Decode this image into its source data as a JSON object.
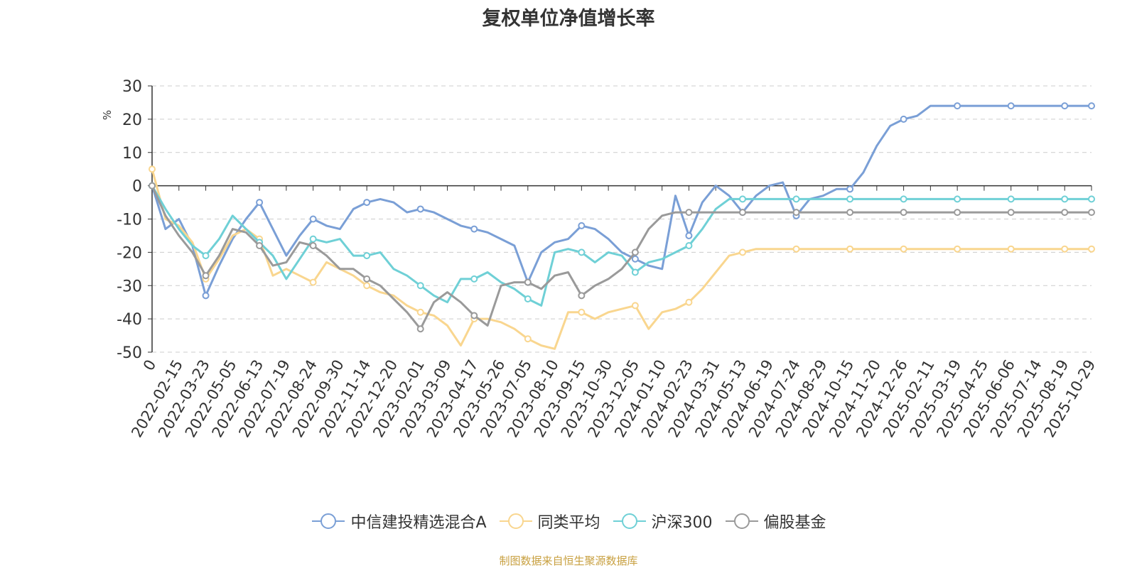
{
  "title": "复权单位净值增长率",
  "source_note": "制图数据来自恒生聚源数据库",
  "chart_data": {
    "type": "line",
    "title": "复权单位净值增长率",
    "ylabel": "%",
    "ylim": [
      -50,
      30
    ],
    "y_ticks": [
      30,
      20,
      10,
      0,
      -10,
      -20,
      -30,
      -40,
      -50
    ],
    "x_ticks": [
      "0",
      "2022-02-15",
      "2022-03-23",
      "2022-05-05",
      "2022-06-13",
      "2022-07-19",
      "2022-08-24",
      "2022-09-30",
      "2022-11-14",
      "2022-12-20",
      "2023-02-01",
      "2023-03-09",
      "2023-04-17",
      "2023-05-26",
      "2023-07-05",
      "2023-08-10",
      "2023-09-15",
      "2023-10-30",
      "2023-12-05",
      "2024-01-10",
      "2024-02-23",
      "2024-03-31",
      "2024-05-13",
      "2024-06-19",
      "2024-07-24",
      "2024-08-29",
      "2024-10-15",
      "2024-11-20",
      "2024-12-26",
      "2025-02-11",
      "2025-03-19",
      "2025-04-25",
      "2025-06-06",
      "2025-07-14",
      "2025-08-19",
      "2025-10-29"
    ],
    "grid": "horizontal dashed",
    "legend_position": "bottom",
    "x_positions": [
      0,
      1,
      2,
      3,
      4,
      5,
      6,
      7,
      8,
      9,
      10,
      11,
      12,
      13,
      14,
      15,
      16,
      17,
      18,
      19,
      20,
      21,
      22,
      23,
      24,
      25,
      26,
      27,
      28,
      29,
      30,
      31,
      32,
      33,
      34,
      35,
      36,
      37,
      38,
      39,
      40,
      41,
      42,
      43,
      44,
      45,
      46,
      47,
      48,
      49,
      50,
      51,
      52,
      53,
      54,
      55,
      56,
      57,
      58,
      59,
      60,
      61,
      62,
      63,
      64,
      65,
      66,
      67,
      68,
      69,
      70
    ],
    "series": [
      {
        "name": "中信建投精选混合A",
        "color": "#7a9fd6",
        "values": [
          0,
          -13,
          -10,
          -18,
          -33,
          -24,
          -16,
          -10,
          -5,
          -13,
          -21,
          -15,
          -10,
          -12,
          -13,
          -7,
          -5,
          -4,
          -5,
          -8,
          -7,
          -8,
          -10,
          -12,
          -13,
          -14,
          -16,
          -18,
          -29,
          -20,
          -17,
          -16,
          -12,
          -13,
          -16,
          -20,
          -22,
          -24,
          -25,
          -3,
          -15,
          -5,
          0,
          -3,
          -8,
          -3,
          0,
          1,
          -9,
          -4,
          -3,
          -1,
          -1,
          4,
          12,
          18,
          20,
          21,
          24,
          24,
          24,
          24,
          24,
          24,
          24,
          24,
          24,
          24,
          24,
          24,
          24
        ]
      },
      {
        "name": "同类平均",
        "color": "#f9d68f",
        "values": [
          5,
          -10,
          -12,
          -17,
          -28,
          -22,
          -15,
          -13,
          -16,
          -27,
          -25,
          -27,
          -29,
          -23,
          -25,
          -27,
          -30,
          -32,
          -33,
          -36,
          -38,
          -39,
          -42,
          -48,
          -40,
          -40,
          -41,
          -43,
          -46,
          -48,
          -49,
          -38,
          -38,
          -40,
          -38,
          -37,
          -36,
          -43,
          -38,
          -37,
          -35,
          -31,
          -26,
          -21,
          -20,
          -19,
          -19,
          -19,
          -19,
          -19,
          -19,
          -19,
          -19,
          -19,
          -19,
          -19,
          -19,
          -19,
          -19,
          -19,
          -19,
          -19,
          -19,
          -19,
          -19,
          -19,
          -19,
          -19,
          -19,
          -19,
          -19
        ]
      },
      {
        "name": "沪深300",
        "color": "#6fd0d6",
        "values": [
          0,
          -7,
          -13,
          -18,
          -21,
          -16,
          -9,
          -13,
          -17,
          -21,
          -28,
          -22,
          -16,
          -17,
          -16,
          -21,
          -21,
          -20,
          -25,
          -27,
          -30,
          -33,
          -35,
          -28,
          -28,
          -26,
          -29,
          -31,
          -34,
          -36,
          -20,
          -19,
          -20,
          -23,
          -20,
          -21,
          -26,
          -23,
          -22,
          -20,
          -18,
          -13,
          -7,
          -4,
          -4,
          -4,
          -4,
          -4,
          -4,
          -4,
          -4,
          -4,
          -4,
          -4,
          -4,
          -4,
          -4,
          -4,
          -4,
          -4,
          -4,
          -4,
          -4,
          -4,
          -4,
          -4,
          -4,
          -4,
          -4,
          -4,
          -4
        ]
      },
      {
        "name": "偏股基金",
        "color": "#9a9a9a",
        "values": [
          0,
          -9,
          -15,
          -20,
          -27,
          -21,
          -13,
          -14,
          -18,
          -24,
          -23,
          -17,
          -18,
          -21,
          -25,
          -25,
          -28,
          -30,
          -34,
          -38,
          -43,
          -35,
          -32,
          -35,
          -39,
          -42,
          -30,
          -29,
          -29,
          -31,
          -27,
          -26,
          -33,
          -30,
          -28,
          -25,
          -20,
          -13,
          -9,
          -8,
          -8,
          -8,
          -8,
          -8,
          -8,
          -8,
          -8,
          -8,
          -8,
          -8,
          -8,
          -8,
          -8,
          -8,
          -8,
          -8,
          -8,
          -8,
          -8,
          -8,
          -8,
          -8,
          -8,
          -8,
          -8,
          -8,
          -8,
          -8,
          -8,
          -8,
          -8
        ]
      }
    ]
  },
  "legend": [
    {
      "label": "中信建投精选混合A",
      "color": "#7a9fd6"
    },
    {
      "label": "同类平均",
      "color": "#f9d68f"
    },
    {
      "label": "沪深300",
      "color": "#6fd0d6"
    },
    {
      "label": "偏股基金",
      "color": "#9a9a9a"
    }
  ]
}
